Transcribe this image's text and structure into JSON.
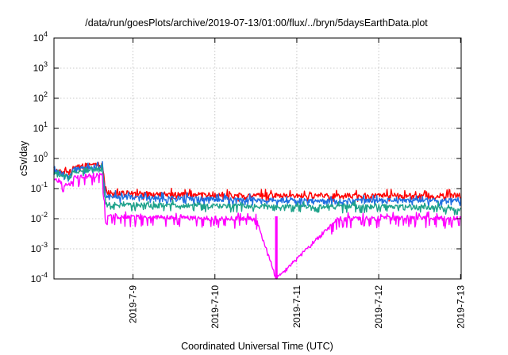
{
  "chart_data": {
    "type": "line",
    "title": "/data/run/goesPlots/archive/2019-07-13/01:00/flux/../bryn/5daysEarthData.plot",
    "xlabel": "Coordinated Universal Time (UTC)",
    "ylabel": "cSv/day",
    "x_range": [
      "2019-07-08 00:50",
      "2019-07-13 00:10"
    ],
    "x_ticks": [
      "2019-7-9",
      "2019-7-10",
      "2019-7-11",
      "2019-7-12",
      "2019-7-13"
    ],
    "y_scale": "log",
    "ylim": [
      0.0001,
      10000
    ],
    "y_ticks": [
      {
        "base": "10",
        "exp": "-4"
      },
      {
        "base": "10",
        "exp": "-3"
      },
      {
        "base": "10",
        "exp": "-2"
      },
      {
        "base": "10",
        "exp": "-1"
      },
      {
        "base": "10",
        "exp": "0"
      },
      {
        "base": "10",
        "exp": "1"
      },
      {
        "base": "10",
        "exp": "2"
      },
      {
        "base": "10",
        "exp": "3"
      },
      {
        "base": "10",
        "exp": "4"
      }
    ],
    "grid": true,
    "series": [
      {
        "color": "#ff0000",
        "values": [
          {
            "x": "2019-07-08 00:50",
            "y": 0.45
          },
          {
            "x": "2019-07-08 05:00",
            "y": 0.32
          },
          {
            "x": "2019-07-08 07:00",
            "y": 0.55
          },
          {
            "x": "2019-07-08 14:00",
            "y": 0.65
          },
          {
            "x": "2019-07-08 15:00",
            "y": 0.65
          },
          {
            "x": "2019-07-08 16:00",
            "y": 0.075
          },
          {
            "x": "2019-07-09 12:00",
            "y": 0.065
          },
          {
            "x": "2019-07-10 12:00",
            "y": 0.06
          },
          {
            "x": "2019-07-11 12:00",
            "y": 0.06
          },
          {
            "x": "2019-07-12 12:00",
            "y": 0.06
          },
          {
            "x": "2019-07-13 00:10",
            "y": 0.06
          }
        ]
      },
      {
        "color": "#1f6fe0",
        "values": [
          {
            "x": "2019-07-08 00:50",
            "y": 0.38
          },
          {
            "x": "2019-07-08 05:00",
            "y": 0.28
          },
          {
            "x": "2019-07-08 07:00",
            "y": 0.45
          },
          {
            "x": "2019-07-08 14:00",
            "y": 0.55
          },
          {
            "x": "2019-07-08 15:00",
            "y": 0.55
          },
          {
            "x": "2019-07-08 16:00",
            "y": 0.055
          },
          {
            "x": "2019-07-09 12:00",
            "y": 0.048
          },
          {
            "x": "2019-07-10 12:00",
            "y": 0.042
          },
          {
            "x": "2019-07-11 12:00",
            "y": 0.04
          },
          {
            "x": "2019-07-12 12:00",
            "y": 0.042
          },
          {
            "x": "2019-07-13 00:10",
            "y": 0.04
          }
        ]
      },
      {
        "color": "#1ea28a",
        "values": [
          {
            "x": "2019-07-08 00:50",
            "y": 0.32
          },
          {
            "x": "2019-07-08 05:00",
            "y": 0.24
          },
          {
            "x": "2019-07-08 07:00",
            "y": 0.38
          },
          {
            "x": "2019-07-08 14:00",
            "y": 0.45
          },
          {
            "x": "2019-07-08 15:00",
            "y": 0.45
          },
          {
            "x": "2019-07-08 16:00",
            "y": 0.03
          },
          {
            "x": "2019-07-09 12:00",
            "y": 0.028
          },
          {
            "x": "2019-07-10 12:00",
            "y": 0.026
          },
          {
            "x": "2019-07-11 12:00",
            "y": 0.025
          },
          {
            "x": "2019-07-12 12:00",
            "y": 0.026
          },
          {
            "x": "2019-07-13 00:10",
            "y": 0.02
          }
        ]
      },
      {
        "color": "#ff00ff",
        "values": [
          {
            "x": "2019-07-08 00:50",
            "y": 0.22
          },
          {
            "x": "2019-07-08 05:00",
            "y": 0.12
          },
          {
            "x": "2019-07-08 07:00",
            "y": 0.24
          },
          {
            "x": "2019-07-08 14:00",
            "y": 0.28
          },
          {
            "x": "2019-07-08 15:00",
            "y": 0.28
          },
          {
            "x": "2019-07-08 16:00",
            "y": 0.012
          },
          {
            "x": "2019-07-09 12:00",
            "y": 0.011
          },
          {
            "x": "2019-07-10 12:00",
            "y": 0.01
          },
          {
            "x": "2019-07-10 18:00",
            "y": 0.0001
          },
          {
            "x": "2019-07-11 12:00",
            "y": 0.01
          },
          {
            "x": "2019-07-12 12:00",
            "y": 0.011
          },
          {
            "x": "2019-07-13 00:10",
            "y": 0.01
          }
        ]
      }
    ]
  }
}
